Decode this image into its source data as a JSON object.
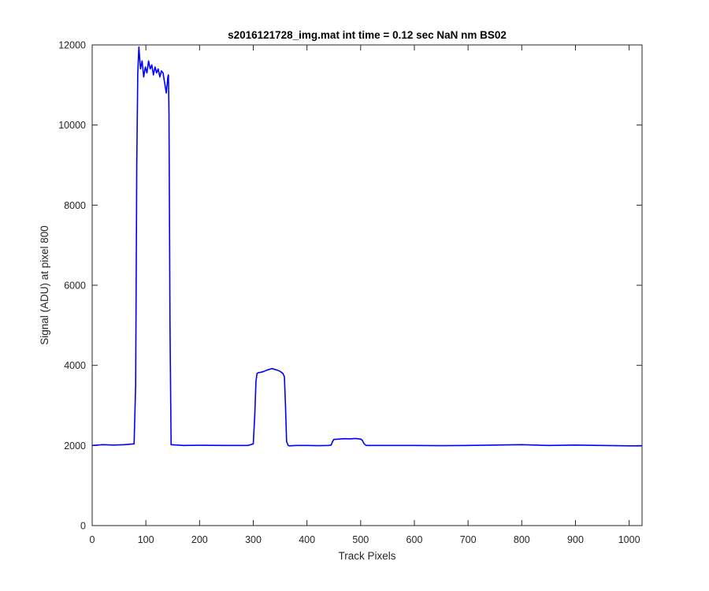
{
  "chart_data": {
    "type": "line",
    "title": "s2016121728_img.mat int time = 0.12 sec  NaN nm BS02",
    "xlabel": "Track Pixels",
    "ylabel": "Signal (ADU) at pixel 800",
    "xlim": [
      0,
      1024
    ],
    "ylim": [
      0,
      12000
    ],
    "xticks": [
      0,
      100,
      200,
      300,
      400,
      500,
      600,
      700,
      800,
      900,
      1000
    ],
    "yticks": [
      0,
      2000,
      4000,
      6000,
      8000,
      10000,
      12000
    ],
    "grid": false,
    "line_color": "#0000ff",
    "series": [
      {
        "x": [
          0,
          20,
          40,
          60,
          78,
          81,
          83,
          85,
          87,
          90,
          93,
          96,
          99,
          102,
          105,
          108,
          111,
          114,
          117,
          120,
          123,
          126,
          129,
          132,
          135,
          138,
          141,
          142,
          143,
          145,
          147,
          170,
          200,
          250,
          290,
          300,
          303,
          305,
          307,
          310,
          315,
          320,
          325,
          330,
          335,
          340,
          345,
          350,
          355,
          358,
          360,
          362,
          365,
          367,
          380,
          400,
          420,
          440,
          445,
          447,
          450,
          460,
          470,
          480,
          490,
          500,
          503,
          506,
          510,
          530,
          560,
          600,
          650,
          700,
          750,
          800,
          850,
          900,
          950,
          1000,
          1024
        ],
        "y": [
          2000,
          2020,
          2010,
          2020,
          2040,
          3500,
          9000,
          11300,
          11950,
          11400,
          11600,
          11200,
          11450,
          11300,
          11600,
          11400,
          11500,
          11250,
          11450,
          11300,
          11400,
          11200,
          11350,
          11300,
          11050,
          10800,
          11200,
          11250,
          10300,
          5000,
          2020,
          2000,
          2005,
          2000,
          2000,
          2040,
          2800,
          3600,
          3800,
          3820,
          3830,
          3850,
          3880,
          3900,
          3920,
          3900,
          3880,
          3850,
          3800,
          3720,
          3000,
          2100,
          2000,
          1990,
          2000,
          2000,
          1995,
          2000,
          2010,
          2080,
          2150,
          2160,
          2170,
          2165,
          2175,
          2160,
          2130,
          2050,
          2000,
          2000,
          2000,
          2000,
          1995,
          2000,
          2010,
          2020,
          2000,
          2010,
          2000,
          1990,
          1990
        ]
      }
    ]
  }
}
